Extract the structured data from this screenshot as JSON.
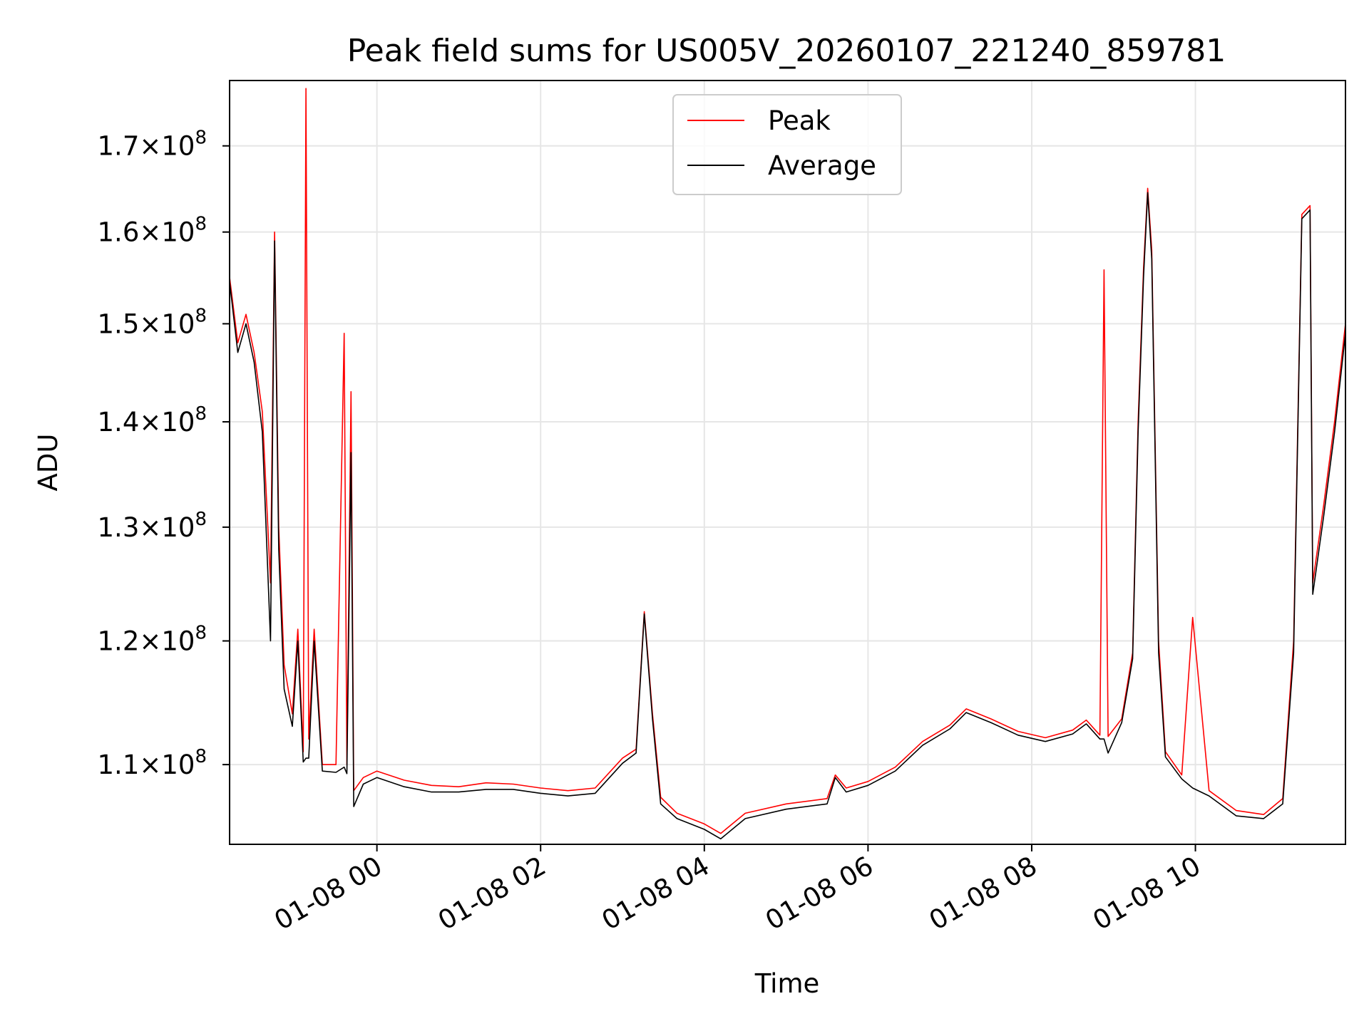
{
  "chart_data": {
    "type": "line",
    "title": "Peak field sums for US005V_20260107_221240_859781",
    "xlabel": "Time",
    "ylabel": "ADU",
    "x_unit": "date-time",
    "xlim": [
      "2026-01-07 22:12",
      "2026-01-08 11:50"
    ],
    "ylim": [
      104000000,
      178000000
    ],
    "y_scale": "log",
    "grid": true,
    "legend_position": "top-center",
    "x_ticks": [
      {
        "value": "2026-01-08 00:00",
        "label": "01-08 00"
      },
      {
        "value": "2026-01-08 02:00",
        "label": "01-08 02"
      },
      {
        "value": "2026-01-08 04:00",
        "label": "01-08 04"
      },
      {
        "value": "2026-01-08 06:00",
        "label": "01-08 06"
      },
      {
        "value": "2026-01-08 08:00",
        "label": "01-08 08"
      },
      {
        "value": "2026-01-08 10:00",
        "label": "01-08 10"
      }
    ],
    "y_ticks": [
      {
        "value": 110000000,
        "mantissa": "1.1",
        "exponent": "8"
      },
      {
        "value": 120000000,
        "mantissa": "1.2",
        "exponent": "8"
      },
      {
        "value": 130000000,
        "mantissa": "1.3",
        "exponent": "8"
      },
      {
        "value": 140000000,
        "mantissa": "1.4",
        "exponent": "8"
      },
      {
        "value": 150000000,
        "mantissa": "1.5",
        "exponent": "8"
      },
      {
        "value": 160000000,
        "mantissa": "1.6",
        "exponent": "8"
      },
      {
        "value": 170000000,
        "mantissa": "1.7",
        "exponent": "8"
      }
    ],
    "y_tick_times_sign": "×",
    "y_tick_base": "10",
    "series": [
      {
        "name": "Peak",
        "color": "#ff0000",
        "points": [
          [
            "2026-01-07 22:12",
            155000000
          ],
          [
            "2026-01-07 22:18",
            148000000
          ],
          [
            "2026-01-07 22:24",
            151000000
          ],
          [
            "2026-01-07 22:30",
            147000000
          ],
          [
            "2026-01-07 22:36",
            141000000
          ],
          [
            "2026-01-07 22:42",
            125000000
          ],
          [
            "2026-01-07 22:45",
            160000000
          ],
          [
            "2026-01-07 22:48",
            130000000
          ],
          [
            "2026-01-07 22:52",
            118000000
          ],
          [
            "2026-01-07 22:58",
            114000000
          ],
          [
            "2026-01-07 23:02",
            121000000
          ],
          [
            "2026-01-07 23:06",
            111000000
          ],
          [
            "2026-01-07 23:08",
            177000000
          ],
          [
            "2026-01-07 23:10",
            112000000
          ],
          [
            "2026-01-07 23:14",
            121000000
          ],
          [
            "2026-01-07 23:20",
            110000000
          ],
          [
            "2026-01-07 23:30",
            110000000
          ],
          [
            "2026-01-07 23:36",
            149000000
          ],
          [
            "2026-01-07 23:38",
            110000000
          ],
          [
            "2026-01-07 23:41",
            143000000
          ],
          [
            "2026-01-07 23:43",
            108000000
          ],
          [
            "2026-01-07 23:50",
            109000000
          ],
          [
            "2026-01-08 00:00",
            109500000
          ],
          [
            "2026-01-08 00:20",
            108800000
          ],
          [
            "2026-01-08 00:40",
            108400000
          ],
          [
            "2026-01-08 01:00",
            108300000
          ],
          [
            "2026-01-08 01:20",
            108600000
          ],
          [
            "2026-01-08 01:40",
            108500000
          ],
          [
            "2026-01-08 02:00",
            108200000
          ],
          [
            "2026-01-08 02:20",
            108000000
          ],
          [
            "2026-01-08 02:40",
            108200000
          ],
          [
            "2026-01-08 03:00",
            110500000
          ],
          [
            "2026-01-08 03:10",
            111200000
          ],
          [
            "2026-01-08 03:16",
            122500000
          ],
          [
            "2026-01-08 03:22",
            114000000
          ],
          [
            "2026-01-08 03:28",
            107500000
          ],
          [
            "2026-01-08 03:40",
            106300000
          ],
          [
            "2026-01-08 04:00",
            105500000
          ],
          [
            "2026-01-08 04:12",
            104800000
          ],
          [
            "2026-01-08 04:30",
            106300000
          ],
          [
            "2026-01-08 05:00",
            107000000
          ],
          [
            "2026-01-08 05:30",
            107400000
          ],
          [
            "2026-01-08 05:36",
            109200000
          ],
          [
            "2026-01-08 05:44",
            108200000
          ],
          [
            "2026-01-08 06:00",
            108700000
          ],
          [
            "2026-01-08 06:20",
            109800000
          ],
          [
            "2026-01-08 06:40",
            111800000
          ],
          [
            "2026-01-08 07:00",
            113100000
          ],
          [
            "2026-01-08 07:12",
            114400000
          ],
          [
            "2026-01-08 07:30",
            113600000
          ],
          [
            "2026-01-08 07:50",
            112600000
          ],
          [
            "2026-01-08 08:10",
            112100000
          ],
          [
            "2026-01-08 08:30",
            112700000
          ],
          [
            "2026-01-08 08:40",
            113500000
          ],
          [
            "2026-01-08 08:50",
            112300000
          ],
          [
            "2026-01-08 08:53",
            155800000
          ],
          [
            "2026-01-08 08:56",
            112200000
          ],
          [
            "2026-01-08 09:06",
            113600000
          ],
          [
            "2026-01-08 09:14",
            119000000
          ],
          [
            "2026-01-08 09:18",
            140000000
          ],
          [
            "2026-01-08 09:22",
            156000000
          ],
          [
            "2026-01-08 09:25",
            165000000
          ],
          [
            "2026-01-08 09:28",
            158000000
          ],
          [
            "2026-01-08 09:33",
            120000000
          ],
          [
            "2026-01-08 09:38",
            111000000
          ],
          [
            "2026-01-08 09:50",
            109200000
          ],
          [
            "2026-01-08 09:58",
            122000000
          ],
          [
            "2026-01-08 10:10",
            108000000
          ],
          [
            "2026-01-08 10:30",
            106500000
          ],
          [
            "2026-01-08 10:50",
            106200000
          ],
          [
            "2026-01-08 11:04",
            107400000
          ],
          [
            "2026-01-08 11:12",
            120000000
          ],
          [
            "2026-01-08 11:18",
            162000000
          ],
          [
            "2026-01-08 11:24",
            163000000
          ],
          [
            "2026-01-08 11:26",
            125000000
          ],
          [
            "2026-01-08 11:34",
            132000000
          ],
          [
            "2026-01-08 11:42",
            140000000
          ],
          [
            "2026-01-08 11:50",
            150000000
          ]
        ]
      },
      {
        "name": "Average",
        "color": "#000000",
        "points": [
          [
            "2026-01-07 22:12",
            154500000
          ],
          [
            "2026-01-07 22:18",
            147000000
          ],
          [
            "2026-01-07 22:24",
            150000000
          ],
          [
            "2026-01-07 22:30",
            146000000
          ],
          [
            "2026-01-07 22:36",
            139000000
          ],
          [
            "2026-01-07 22:42",
            120000000
          ],
          [
            "2026-01-07 22:45",
            159000000
          ],
          [
            "2026-01-07 22:48",
            128000000
          ],
          [
            "2026-01-07 22:52",
            116000000
          ],
          [
            "2026-01-07 22:58",
            113000000
          ],
          [
            "2026-01-07 23:02",
            120000000
          ],
          [
            "2026-01-07 23:06",
            110200000
          ],
          [
            "2026-01-07 23:08",
            110500000
          ],
          [
            "2026-01-07 23:10",
            110500000
          ],
          [
            "2026-01-07 23:14",
            120000000
          ],
          [
            "2026-01-07 23:20",
            109500000
          ],
          [
            "2026-01-07 23:30",
            109400000
          ],
          [
            "2026-01-07 23:36",
            109800000
          ],
          [
            "2026-01-07 23:38",
            109300000
          ],
          [
            "2026-01-07 23:41",
            137000000
          ],
          [
            "2026-01-07 23:43",
            106800000
          ],
          [
            "2026-01-07 23:50",
            108500000
          ],
          [
            "2026-01-08 00:00",
            109000000
          ],
          [
            "2026-01-08 00:20",
            108300000
          ],
          [
            "2026-01-08 00:40",
            107900000
          ],
          [
            "2026-01-08 01:00",
            107900000
          ],
          [
            "2026-01-08 01:20",
            108100000
          ],
          [
            "2026-01-08 01:40",
            108100000
          ],
          [
            "2026-01-08 02:00",
            107800000
          ],
          [
            "2026-01-08 02:20",
            107600000
          ],
          [
            "2026-01-08 02:40",
            107800000
          ],
          [
            "2026-01-08 03:00",
            110100000
          ],
          [
            "2026-01-08 03:10",
            110900000
          ],
          [
            "2026-01-08 03:16",
            122300000
          ],
          [
            "2026-01-08 03:22",
            113600000
          ],
          [
            "2026-01-08 03:28",
            107000000
          ],
          [
            "2026-01-08 03:40",
            105900000
          ],
          [
            "2026-01-08 04:00",
            105100000
          ],
          [
            "2026-01-08 04:12",
            104400000
          ],
          [
            "2026-01-08 04:30",
            105900000
          ],
          [
            "2026-01-08 05:00",
            106600000
          ],
          [
            "2026-01-08 05:30",
            107000000
          ],
          [
            "2026-01-08 05:36",
            109000000
          ],
          [
            "2026-01-08 05:44",
            107900000
          ],
          [
            "2026-01-08 06:00",
            108400000
          ],
          [
            "2026-01-08 06:20",
            109500000
          ],
          [
            "2026-01-08 06:40",
            111500000
          ],
          [
            "2026-01-08 07:00",
            112800000
          ],
          [
            "2026-01-08 07:12",
            114100000
          ],
          [
            "2026-01-08 07:30",
            113300000
          ],
          [
            "2026-01-08 07:50",
            112300000
          ],
          [
            "2026-01-08 08:10",
            111800000
          ],
          [
            "2026-01-08 08:30",
            112400000
          ],
          [
            "2026-01-08 08:40",
            113200000
          ],
          [
            "2026-01-08 08:50",
            112000000
          ],
          [
            "2026-01-08 08:53",
            112000000
          ],
          [
            "2026-01-08 08:56",
            110900000
          ],
          [
            "2026-01-08 09:06",
            113300000
          ],
          [
            "2026-01-08 09:14",
            118500000
          ],
          [
            "2026-01-08 09:18",
            139000000
          ],
          [
            "2026-01-08 09:22",
            155000000
          ],
          [
            "2026-01-08 09:25",
            164500000
          ],
          [
            "2026-01-08 09:28",
            157000000
          ],
          [
            "2026-01-08 09:33",
            119000000
          ],
          [
            "2026-01-08 09:38",
            110600000
          ],
          [
            "2026-01-08 09:50",
            108900000
          ],
          [
            "2026-01-08 09:58",
            108200000
          ],
          [
            "2026-01-08 10:10",
            107600000
          ],
          [
            "2026-01-08 10:30",
            106100000
          ],
          [
            "2026-01-08 10:50",
            105900000
          ],
          [
            "2026-01-08 11:04",
            107000000
          ],
          [
            "2026-01-08 11:12",
            119000000
          ],
          [
            "2026-01-08 11:18",
            161500000
          ],
          [
            "2026-01-08 11:24",
            162500000
          ],
          [
            "2026-01-08 11:26",
            124000000
          ],
          [
            "2026-01-08 11:34",
            131000000
          ],
          [
            "2026-01-08 11:42",
            139000000
          ],
          [
            "2026-01-08 11:50",
            149000000
          ]
        ]
      }
    ]
  }
}
